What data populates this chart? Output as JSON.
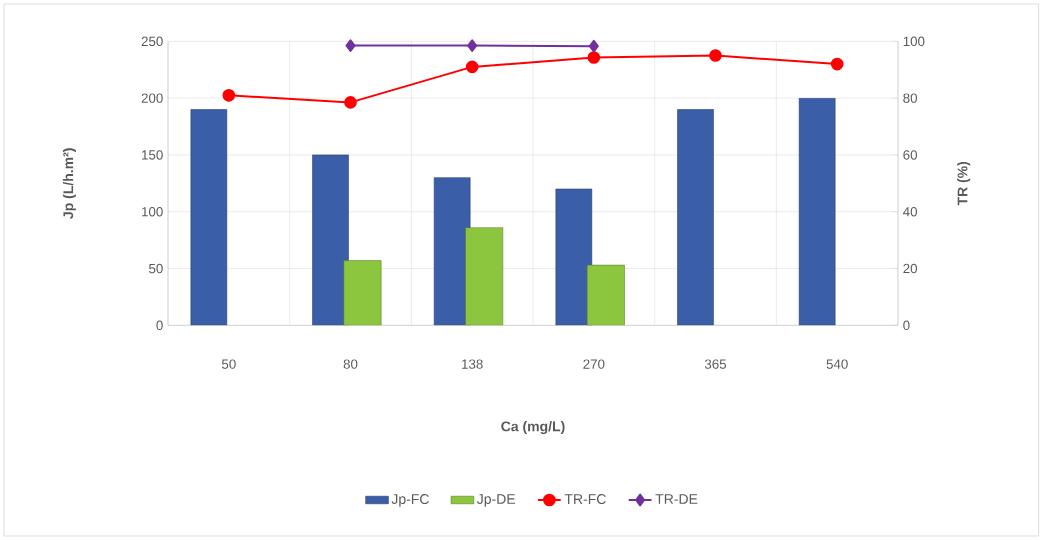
{
  "chart_data": {
    "type": "bar",
    "xlabel": "Ca (mg/L)",
    "ylabel": "Jp (L/h.m²)",
    "y2label": "TR (%)",
    "categories": [
      "50",
      "80",
      "138",
      "270",
      "365",
      "540"
    ],
    "series": [
      {
        "name": "Jp-FC",
        "color": "#3b5ea8",
        "values": [
          190,
          150,
          130,
          120,
          190,
          200
        ]
      },
      {
        "name": "Jp-DE",
        "color": "#8cc63f",
        "values": [
          null,
          57,
          86,
          53,
          null,
          null
        ]
      },
      {
        "name": "TR-FC",
        "type": "line",
        "axis": "y2",
        "marker": "circle",
        "color": "#ff0000",
        "values": [
          81,
          78.5,
          91,
          94.3,
          95,
          92
        ]
      },
      {
        "name": "TR-DE",
        "type": "line",
        "axis": "y2",
        "marker": "diamond",
        "color": "#7030a0",
        "values": [
          null,
          98.5,
          98.5,
          98.3,
          null,
          null
        ]
      }
    ],
    "ylim": [
      0,
      250
    ],
    "yticks": [
      0,
      50,
      100,
      150,
      200,
      250
    ],
    "y2lim": [
      0,
      100
    ],
    "y2ticks": [
      0,
      20,
      40,
      60,
      80,
      100
    ],
    "grid": true,
    "legend": "bottom"
  }
}
